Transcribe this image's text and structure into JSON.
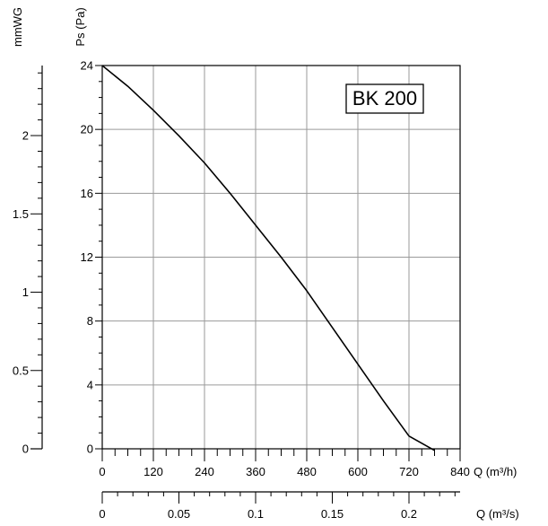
{
  "chart_data": {
    "type": "line",
    "title": "BK 200",
    "xlabel": "Q (m³/h)",
    "ylabel": "Ps (Pa)",
    "xlim": [
      0,
      840
    ],
    "ylim": [
      0,
      24
    ],
    "x_ticks": [
      0,
      120,
      240,
      360,
      480,
      600,
      720,
      840
    ],
    "y_ticks": [
      0,
      4,
      8,
      12,
      16,
      20,
      24
    ],
    "grid": true,
    "secondary_y": {
      "label": "mmWG",
      "ticks": [
        0,
        0.5,
        1,
        1.5,
        2
      ],
      "scale_per_primary": 0.10197
    },
    "secondary_x": {
      "label": "Q (m³/s)",
      "ticks": [
        0,
        0.05,
        0.1,
        0.15,
        0.2
      ],
      "scale_per_primary": 0.00027778
    },
    "series": [
      {
        "x": [
          0,
          60,
          120,
          180,
          240,
          300,
          360,
          420,
          480,
          540,
          600,
          660,
          720,
          780
        ],
        "y": [
          24,
          22.7,
          21.2,
          19.6,
          17.9,
          16.0,
          14.0,
          12.0,
          9.9,
          7.6,
          5.3,
          3.0,
          0.8,
          -0.1
        ]
      }
    ]
  }
}
